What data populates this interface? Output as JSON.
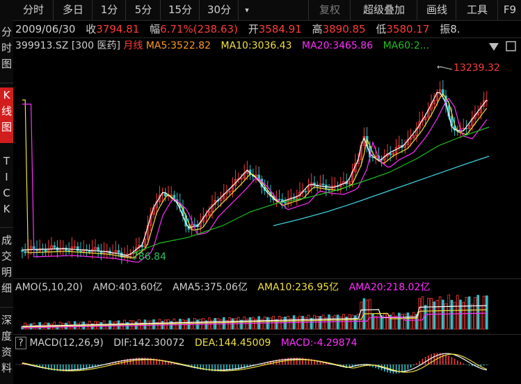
{
  "tabs": [
    "分时",
    "多日",
    "1分",
    "5分",
    "15分",
    "30分",
    "▾",
    "复权",
    "超级叠加",
    "画线",
    "工具",
    "F9"
  ],
  "sidebar": [
    "分\n时\n图",
    "K\n线\n图",
    "T\nI\nC\nK",
    "成\n交\n明\n细",
    "深\n度\n资\n料"
  ],
  "quote": {
    "date": "2009/06/30",
    "close_label": "收",
    "close": "3794.81",
    "amp_label": "幅",
    "amp": "6.71%(238.63)",
    "open_label": "开",
    "open": "3584.91",
    "high_label": "高",
    "high": "3890.85",
    "low_label": "低",
    "low": "3580.17",
    "vib_label": "振",
    "vib": "8."
  },
  "ma_row": {
    "code": "399913.SZ",
    "name": "[300 医药]",
    "period": "月线",
    "ma5": "MA5:3522.82",
    "ma10": "MA10:3036.43",
    "ma20": "MA20:3465.86",
    "ma60": "MA60:2..."
  },
  "amo_row": {
    "label": "AMO(5,10,20)",
    "amo": "AMO:403.60亿",
    "ama5": "AMA5:375.06亿",
    "ama10": "AMA10:236.95亿",
    "ama20": "AMA20:218.02亿"
  },
  "macd_row": {
    "q": "?",
    "label": "MACD(12,26,9)",
    "dif": "DIF:142.30072",
    "dea": "DEA:144.45009",
    "macd": "MACD:-4.29874"
  },
  "annotations": {
    "high": "13239.32",
    "low": "786.84"
  },
  "colors": {
    "up": "#ff3b3b",
    "down": "#30c0c8",
    "ma5": "#ffffff",
    "ma10": "#f0e040",
    "ma20": "#ff30ff",
    "ma60": "#20c020",
    "ma120": "#40d0e0"
  },
  "chart_data": {
    "type": "candlestick",
    "series_note": "monthly index, price + MA lines, AMO volume, MACD",
    "high": 13239.32,
    "low": 786.84
  }
}
